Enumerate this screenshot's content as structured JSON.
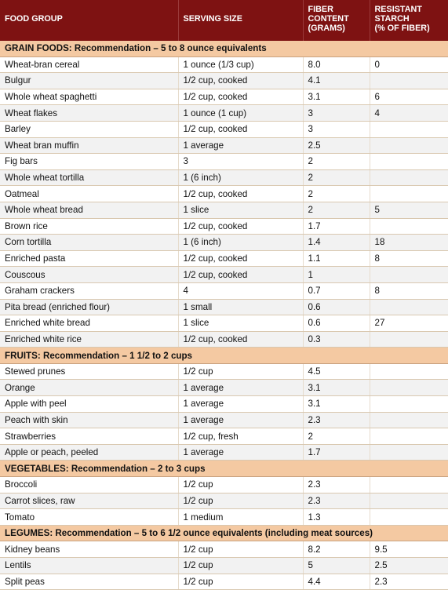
{
  "headers": {
    "food_group": "FOOD GROUP",
    "serving_size": "SERVING SIZE",
    "fiber_line1": "FIBER",
    "fiber_line2": "CONTENT",
    "fiber_line3": "(GRAMS)",
    "resistant_line1": "RESISTANT",
    "resistant_line2": "STARCH",
    "resistant_line3": "(% OF FIBER)"
  },
  "sections": [
    {
      "title": "GRAIN FOODS: Recommendation – 5 to 8 ounce equivalents",
      "rows": [
        {
          "food": "Wheat-bran cereal",
          "serving": "1 ounce (1/3 cup)",
          "fiber": "8.0",
          "starch": "0"
        },
        {
          "food": "Bulgur",
          "serving": "1/2 cup, cooked",
          "fiber": "4.1",
          "starch": ""
        },
        {
          "food": "Whole wheat spaghetti",
          "serving": "1/2 cup, cooked",
          "fiber": "3.1",
          "starch": "6"
        },
        {
          "food": "Wheat flakes",
          "serving": "1 ounce (1 cup)",
          "fiber": "3",
          "starch": "4"
        },
        {
          "food": "Barley",
          "serving": "1/2 cup, cooked",
          "fiber": "3",
          "starch": ""
        },
        {
          "food": "Wheat bran muffin",
          "serving": "1 average",
          "fiber": "2.5",
          "starch": ""
        },
        {
          "food": "Fig bars",
          "serving": "3",
          "fiber": "2",
          "starch": ""
        },
        {
          "food": "Whole wheat tortilla",
          "serving": "1 (6 inch)",
          "fiber": "2",
          "starch": ""
        },
        {
          "food": "Oatmeal",
          "serving": "1/2 cup, cooked",
          "fiber": "2",
          "starch": ""
        },
        {
          "food": "Whole wheat bread",
          "serving": "1 slice",
          "fiber": "2",
          "starch": "5"
        },
        {
          "food": "Brown rice",
          "serving": "1/2 cup, cooked",
          "fiber": "1.7",
          "starch": ""
        },
        {
          "food": "Corn tortilla",
          "serving": "1 (6 inch)",
          "fiber": "1.4",
          "starch": "18"
        },
        {
          "food": "Enriched pasta",
          "serving": "1/2 cup, cooked",
          "fiber": "1.1",
          "starch": "8"
        },
        {
          "food": "Couscous",
          "serving": "1/2 cup, cooked",
          "fiber": "1",
          "starch": ""
        },
        {
          "food": "Graham crackers",
          "serving": "4",
          "fiber": "0.7",
          "starch": "8"
        },
        {
          "food": "Pita bread (enriched flour)",
          "serving": "1 small",
          "fiber": "0.6",
          "starch": ""
        },
        {
          "food": "Enriched white bread",
          "serving": "1 slice",
          "fiber": "0.6",
          "starch": "27"
        },
        {
          "food": "Enriched white rice",
          "serving": "1/2 cup, cooked",
          "fiber": "0.3",
          "starch": ""
        }
      ]
    },
    {
      "title": "FRUITS: Recommendation – 1 1/2 to 2 cups",
      "rows": [
        {
          "food": "Stewed prunes",
          "serving": "1/2 cup",
          "fiber": "4.5",
          "starch": ""
        },
        {
          "food": "Orange",
          "serving": "1 average",
          "fiber": "3.1",
          "starch": ""
        },
        {
          "food": "Apple with peel",
          "serving": "1 average",
          "fiber": "3.1",
          "starch": ""
        },
        {
          "food": "Peach with skin",
          "serving": "1 average",
          "fiber": "2.3",
          "starch": ""
        },
        {
          "food": "Strawberries",
          "serving": "1/2 cup, fresh",
          "fiber": "2",
          "starch": ""
        },
        {
          "food": "Apple or peach, peeled",
          "serving": "1 average",
          "fiber": "1.7",
          "starch": ""
        }
      ]
    },
    {
      "title": "VEGETABLES: Recommendation – 2 to 3 cups",
      "rows": [
        {
          "food": "Broccoli",
          "serving": "1/2 cup",
          "fiber": "2.3",
          "starch": ""
        },
        {
          "food": "Carrot slices, raw",
          "serving": "1/2 cup",
          "fiber": "2.3",
          "starch": ""
        },
        {
          "food": "Tomato",
          "serving": "1 medium",
          "fiber": "1.3",
          "starch": ""
        }
      ]
    },
    {
      "title": "LEGUMES: Recommendation – 5 to 6 1/2 ounce equivalents (including meat sources)",
      "rows": [
        {
          "food": "Kidney beans",
          "serving": "1/2 cup",
          "fiber": "8.2",
          "starch": "9.5"
        },
        {
          "food": "Lentils",
          "serving": "1/2 cup",
          "fiber": "5",
          "starch": "2.5"
        },
        {
          "food": "Split peas",
          "serving": "1/2 cup",
          "fiber": "4.4",
          "starch": "2.3"
        }
      ]
    }
  ]
}
